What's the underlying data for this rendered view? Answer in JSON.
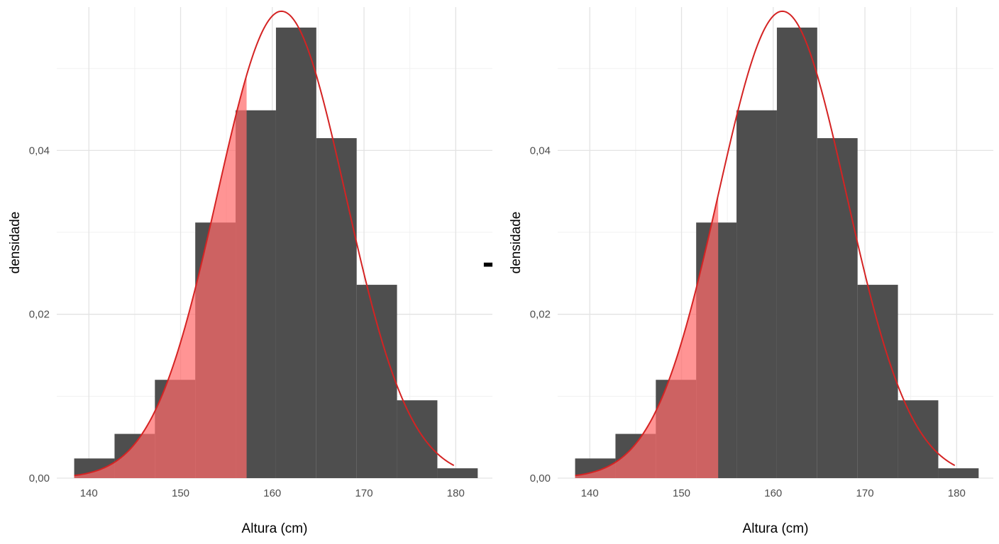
{
  "operator_label": "-",
  "chart_data": [
    {
      "type": "bar",
      "subtype": "histogram_with_density_curve",
      "xlabel": "Altura (cm)",
      "ylabel": "densidade",
      "xlim": [
        136.5,
        184
      ],
      "ylim": [
        0,
        0.0575
      ],
      "x_ticks": [
        140,
        150,
        160,
        170,
        180
      ],
      "x_tick_labels": [
        "140",
        "150",
        "160",
        "170",
        "180"
      ],
      "y_ticks": [
        0,
        0.02,
        0.04
      ],
      "y_tick_labels": [
        "0,00",
        "0,02",
        "0,04"
      ],
      "grid": true,
      "bin_edges": [
        138.4,
        142.8,
        147.2,
        151.6,
        156.0,
        160.4,
        164.8,
        169.2,
        173.6,
        178.0,
        182.4
      ],
      "values": [
        0.0024,
        0.0054,
        0.012,
        0.0312,
        0.0449,
        0.055,
        0.0415,
        0.0236,
        0.0095,
        0.0012
      ],
      "curve": {
        "mean": 161,
        "sd": 7.0,
        "x_range": [
          138.4,
          179.8
        ]
      },
      "shade_upto": 157.2,
      "colors": {
        "bar": "#4e4e4e",
        "curve": "#d42323",
        "shade": "#ff6b6b",
        "shade_overlap": "#9c2b2d"
      }
    },
    {
      "type": "bar",
      "subtype": "histogram_with_density_curve",
      "xlabel": "Altura (cm)",
      "ylabel": "densidade",
      "xlim": [
        136.5,
        184
      ],
      "ylim": [
        0,
        0.0575
      ],
      "x_ticks": [
        140,
        150,
        160,
        170,
        180
      ],
      "x_tick_labels": [
        "140",
        "150",
        "160",
        "170",
        "180"
      ],
      "y_ticks": [
        0,
        0.02,
        0.04
      ],
      "y_tick_labels": [
        "0,00",
        "0,02",
        "0,04"
      ],
      "grid": true,
      "bin_edges": [
        138.4,
        142.8,
        147.2,
        151.6,
        156.0,
        160.4,
        164.8,
        169.2,
        173.6,
        178.0,
        182.4
      ],
      "values": [
        0.0024,
        0.0054,
        0.012,
        0.0312,
        0.0449,
        0.055,
        0.0415,
        0.0236,
        0.0095,
        0.0012
      ],
      "curve": {
        "mean": 161,
        "sd": 7.0,
        "x_range": [
          138.4,
          179.8
        ]
      },
      "shade_upto": 154.0,
      "colors": {
        "bar": "#4e4e4e",
        "curve": "#d42323",
        "shade": "#ff6b6b",
        "shade_overlap": "#9c2b2d"
      }
    }
  ]
}
